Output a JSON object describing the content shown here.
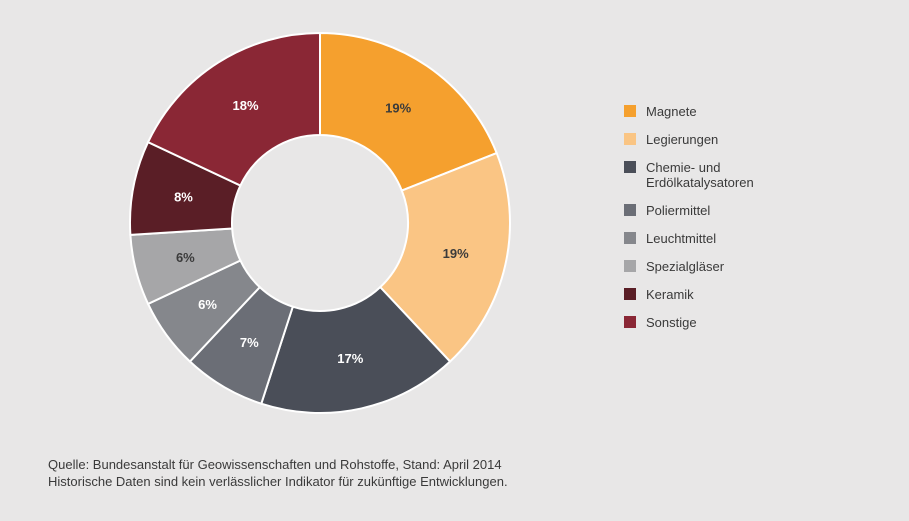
{
  "chart_data": {
    "type": "pie",
    "style": "donut",
    "slices": [
      {
        "label": "Magnete",
        "value": 19,
        "display": "19%",
        "color": "#f5a02e",
        "text_color": "#3b3b3b"
      },
      {
        "label": "Legierungen",
        "value": 19,
        "display": "19%",
        "color": "#fac584",
        "text_color": "#3b3b3b"
      },
      {
        "label": "Chemie- und\nErdölkatalysatoren",
        "value": 17,
        "display": "17%",
        "color": "#4a4e58",
        "text_color": "#ffffff"
      },
      {
        "label": "Poliermittel",
        "value": 7,
        "display": "7%",
        "color": "#6b6e76",
        "text_color": "#ffffff"
      },
      {
        "label": "Leuchtmittel",
        "value": 6,
        "display": "6%",
        "color": "#85878c",
        "text_color": "#ffffff"
      },
      {
        "label": "Spezialgläser",
        "value": 6,
        "display": "6%",
        "color": "#a6a6a8",
        "text_color": "#3b3b3b"
      },
      {
        "label": "Keramik",
        "value": 8,
        "display": "8%",
        "color": "#5a1e26",
        "text_color": "#ffffff"
      },
      {
        "label": "Sonstige",
        "value": 18,
        "display": "18%",
        "color": "#8a2735",
        "text_color": "#ffffff"
      }
    ],
    "start": "top",
    "direction": "clockwise",
    "legend_position": "right"
  },
  "source": {
    "line1": "Quelle: Bundesanstalt für Geowissenschaften und Rohstoffe, Stand: April 2014",
    "line2": "Historische Daten sind kein verlässlicher Indikator für zukünftige Entwicklungen."
  }
}
